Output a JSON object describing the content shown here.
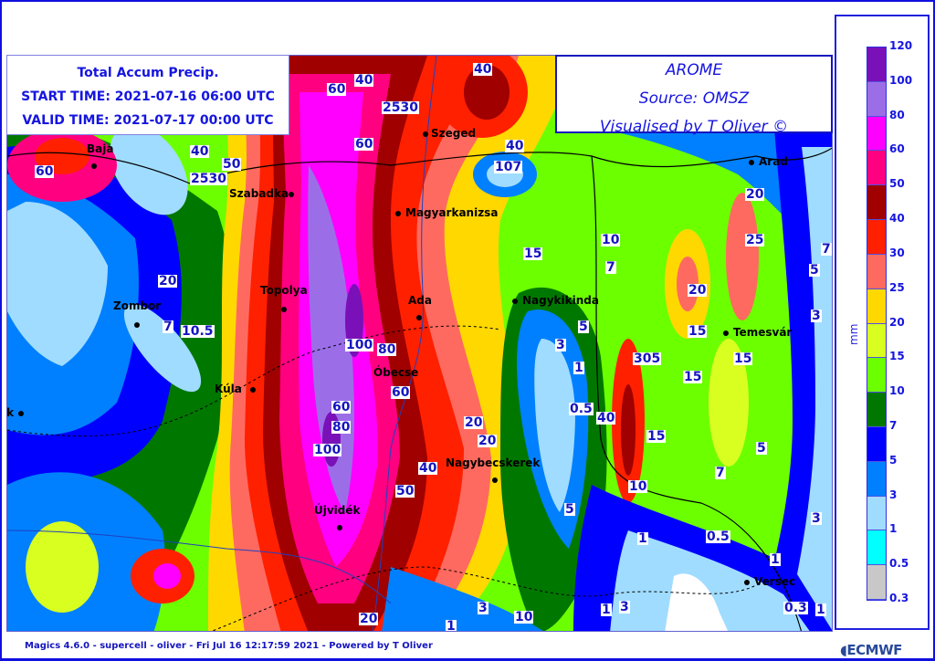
{
  "title": {
    "line1": "Total Accum Precip.",
    "line2": "START TIME: 2021-07-16 06:00 UTC",
    "line3": "VALID TIME: 2021-07-17 00:00 UTC"
  },
  "source": {
    "line1": "AROME",
    "line2": "Source: OMSZ",
    "line3": "Visualised by T Oliver ©"
  },
  "legend": {
    "unit": "mm",
    "levels": [
      "120",
      "100",
      "80",
      "60",
      "50",
      "40",
      "30",
      "25",
      "20",
      "15",
      "10",
      "7",
      "5",
      "3",
      "1",
      "0.5",
      "0.3"
    ],
    "colors": [
      "#7a10b8",
      "#9b6ee8",
      "#ff00ff",
      "#ff0080",
      "#a00000",
      "#ff2000",
      "#ff6a60",
      "#ffd800",
      "#d8ff20",
      "#6cff00",
      "#007800",
      "#0000ff",
      "#0080ff",
      "#a0dcff",
      "#00ffff",
      "#c8c8c8"
    ]
  },
  "cities": [
    "Baja",
    "Szeged",
    "Szabadka",
    "Magyarkanizsa",
    "Arad",
    "Zombor",
    "Topolya",
    "Ada",
    "Nagykikinda",
    "Temesvár",
    "Kúla",
    "Óbecse",
    "ek",
    "Nagybecskerek",
    "Újvidék",
    "Versec"
  ],
  "contour_labels": [
    "40",
    "60",
    "40",
    "2530",
    "60",
    "40",
    "107",
    "15",
    "10",
    "7",
    "20",
    "25",
    "7",
    "5",
    "3",
    "20",
    "40",
    "50",
    "2530",
    "60",
    "20",
    "10.5",
    "7",
    "15",
    "5",
    "3",
    "1",
    "0.5",
    "100",
    "80",
    "60",
    "100",
    "80",
    "60",
    "20",
    "40",
    "50",
    "20",
    "305",
    "40",
    "15",
    "10",
    "5",
    "7",
    "5",
    "15",
    "15",
    "1",
    "0.5",
    "1",
    "3",
    "20",
    "1",
    "3",
    "10",
    "1",
    "3",
    "1",
    "0.3"
  ],
  "footer": "Magics 4.6.0 - supercell - oliver - Fri Jul 16 12:17:59 2021 - Powered by T Oliver",
  "logo": "ECMWF"
}
